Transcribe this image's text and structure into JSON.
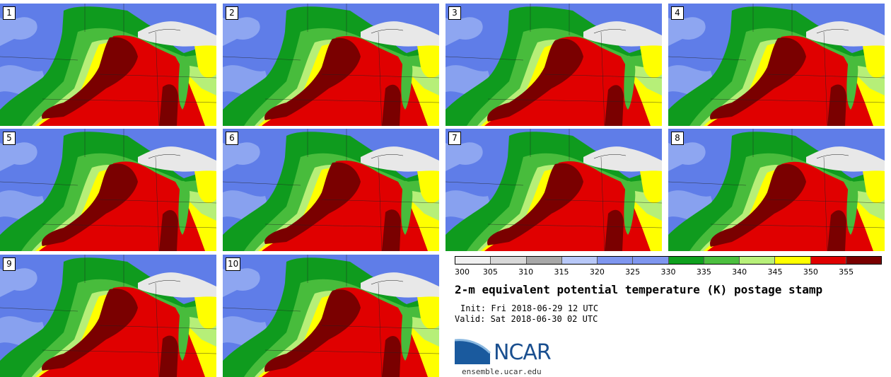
{
  "panels": [
    "1",
    "2",
    "3",
    "4",
    "5",
    "6",
    "7",
    "8",
    "9",
    "10"
  ],
  "colorbar": {
    "colors": [
      "#f0f0f0",
      "#d8d8d8",
      "#a8a8a8",
      "#b8c8f8",
      "#7f96ef",
      "#7f96ef",
      "#0fa01e",
      "#4cbf3f",
      "#b8f07a",
      "#ffff00",
      "#e00000",
      "#7a0000"
    ],
    "ticks": [
      "300",
      "305",
      "310",
      "315",
      "320",
      "325",
      "330",
      "335",
      "340",
      "345",
      "350",
      "355"
    ]
  },
  "title": "2-m equivalent potential temperature (K) postage stamp",
  "init_line": "Init: Fri 2018-06-29 12 UTC",
  "valid_line": "Valid: Sat 2018-06-30 02 UTC",
  "logo_text": "NCAR",
  "site": "ensemble.ucar.edu",
  "map_colors": {
    "blue_dark": "#5f7de8",
    "blue_light": "#9ab0f2",
    "green_dark": "#0f9b1e",
    "green_mid": "#48bc3c",
    "green_light": "#b6ef78",
    "yellow": "#ffff00",
    "red": "#e00000",
    "maroon": "#7a0000",
    "snow": "#e8e8e8",
    "lines": "#222222"
  }
}
